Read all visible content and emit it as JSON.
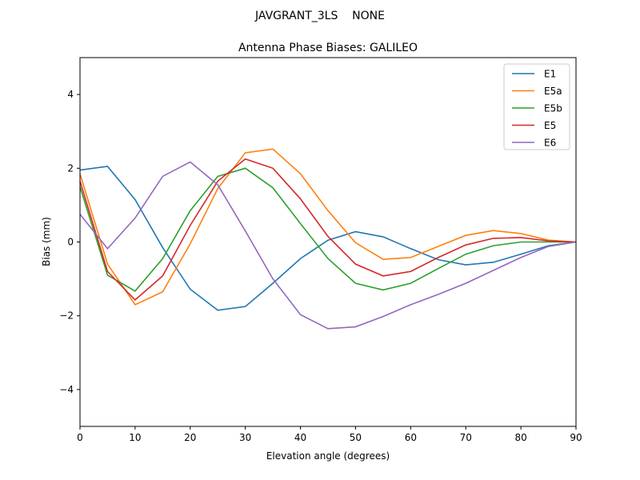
{
  "chart_data": {
    "type": "line",
    "suptitle": "JAVGRANT_3LS    NONE",
    "title": "Antenna Phase Biases: GALILEO",
    "xlabel": "Elevation angle (degrees)",
    "ylabel": "Bias (mm)",
    "xlim": [
      0,
      90
    ],
    "ylim": [
      -5,
      5
    ],
    "xticks": [
      0,
      10,
      20,
      30,
      40,
      50,
      60,
      70,
      80,
      90
    ],
    "yticks": [
      -4,
      -2,
      0,
      2,
      4
    ],
    "ytick_labels": [
      "−4",
      "−2",
      "0",
      "2",
      "4"
    ],
    "grid": false,
    "legend_position": "top-right",
    "x": [
      0,
      5,
      10,
      15,
      20,
      25,
      30,
      35,
      40,
      45,
      50,
      55,
      60,
      65,
      70,
      75,
      80,
      85,
      90
    ],
    "series": [
      {
        "name": "E1",
        "color": "#1f77b4",
        "values": [
          1.95,
          2.05,
          1.15,
          -0.15,
          -1.28,
          -1.85,
          -1.75,
          -1.12,
          -0.45,
          0.05,
          0.28,
          0.14,
          -0.18,
          -0.48,
          -0.62,
          -0.55,
          -0.33,
          -0.1,
          0
        ]
      },
      {
        "name": "E5a",
        "color": "#ff7f0e",
        "values": [
          1.85,
          -0.6,
          -1.7,
          -1.35,
          -0.05,
          1.45,
          2.42,
          2.52,
          1.85,
          0.85,
          -0.02,
          -0.47,
          -0.42,
          -0.12,
          0.18,
          0.31,
          0.23,
          0.05,
          0
        ]
      },
      {
        "name": "E5b",
        "color": "#2ca02c",
        "values": [
          1.5,
          -0.9,
          -1.33,
          -0.45,
          0.85,
          1.78,
          2.0,
          1.47,
          0.5,
          -0.45,
          -1.12,
          -1.3,
          -1.12,
          -0.72,
          -0.33,
          -0.1,
          0.0,
          0.0,
          0
        ]
      },
      {
        "name": "E5",
        "color": "#d62728",
        "values": [
          1.65,
          -0.8,
          -1.57,
          -0.92,
          0.45,
          1.65,
          2.25,
          2.0,
          1.17,
          0.15,
          -0.6,
          -0.92,
          -0.8,
          -0.42,
          -0.08,
          0.1,
          0.12,
          0.03,
          0
        ]
      },
      {
        "name": "E6",
        "color": "#9467bd",
        "values": [
          0.75,
          -0.18,
          0.65,
          1.78,
          2.17,
          1.55,
          0.3,
          -1.0,
          -1.97,
          -2.35,
          -2.3,
          -2.02,
          -1.7,
          -1.42,
          -1.12,
          -0.77,
          -0.42,
          -0.12,
          0
        ]
      }
    ]
  }
}
